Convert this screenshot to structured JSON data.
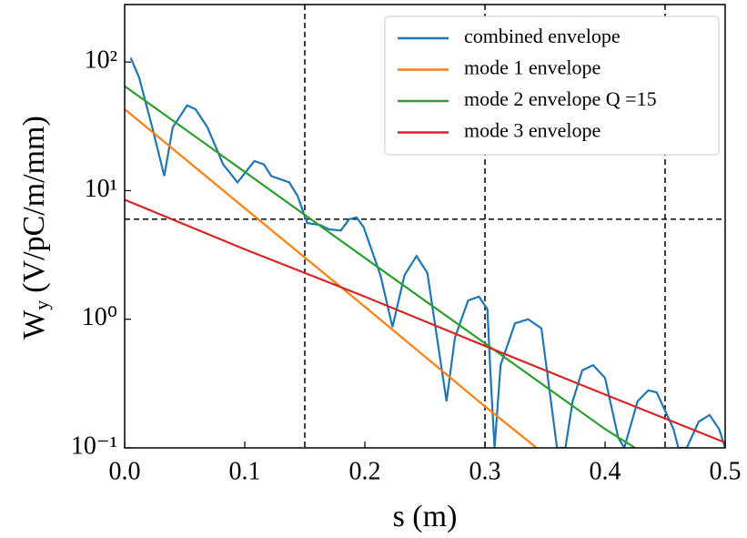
{
  "chart_data": {
    "type": "line",
    "xlabel": "s (m)",
    "ylabel": {
      "main": "W",
      "sub": "y",
      "rest": "(V/pC/m/mm)"
    },
    "log_y": true,
    "xlim": [
      0,
      0.5
    ],
    "ylim": [
      0.1,
      280
    ],
    "xticks": [
      {
        "value": 0,
        "label": "0.0"
      },
      0.1,
      0.2,
      0.3,
      0.4,
      0.5
    ],
    "yticks": [
      {
        "value": 0.1,
        "label": "10⁻¹"
      },
      {
        "value": 1,
        "label": "10⁰"
      },
      {
        "value": 10,
        "label": "10¹"
      },
      {
        "value": 100,
        "label": "10²"
      }
    ],
    "reference_lines": {
      "x": [
        0.15,
        0.3,
        0.45
      ],
      "y": [
        6
      ]
    },
    "legend": "upper right",
    "series": [
      {
        "name": "combined envelope",
        "color": "#1f77b4",
        "x": [
          0.005,
          0.012,
          0.023,
          0.033,
          0.04,
          0.052,
          0.059,
          0.069,
          0.082,
          0.094,
          0.108,
          0.116,
          0.122,
          0.137,
          0.144,
          0.152,
          0.163,
          0.17,
          0.18,
          0.187,
          0.193,
          0.199,
          0.213,
          0.223,
          0.233,
          0.243,
          0.252,
          0.268,
          0.275,
          0.286,
          0.295,
          0.302,
          0.305,
          0.308,
          0.313,
          0.325,
          0.336,
          0.347,
          0.36,
          0.367,
          0.373,
          0.381,
          0.39,
          0.4,
          0.411,
          0.416,
          0.427,
          0.436,
          0.443,
          0.457,
          0.461,
          0.468,
          0.478,
          0.487,
          0.495,
          0.5
        ],
        "values": [
          108,
          76,
          31,
          13,
          31,
          46,
          43,
          31,
          16,
          11.6,
          17,
          16,
          13,
          11.6,
          9.1,
          5.6,
          5.4,
          5.0,
          4.9,
          6.0,
          6.2,
          5.2,
          2.2,
          0.87,
          2.2,
          3.1,
          2.3,
          0.23,
          0.72,
          1.4,
          1.5,
          1.2,
          0.32,
          0.1,
          0.44,
          0.93,
          1.0,
          0.85,
          0.1,
          0.1,
          0.23,
          0.4,
          0.44,
          0.35,
          0.12,
          0.1,
          0.23,
          0.28,
          0.27,
          0.14,
          0.1,
          0.1,
          0.16,
          0.18,
          0.14,
          0.1
        ]
      },
      {
        "name": "mode 1 envelope",
        "color": "#ff7f0e",
        "x": [
          0,
          0.1,
          0.2,
          0.3,
          0.343
        ],
        "values": [
          43,
          7.3,
          1.25,
          0.21,
          0.1
        ]
      },
      {
        "name": "mode 2 envelope Q =15",
        "color": "#2ca02c",
        "x": [
          0,
          0.1,
          0.2,
          0.3,
          0.4,
          0.425
        ],
        "values": [
          65,
          14,
          3.0,
          0.65,
          0.14,
          0.1
        ]
      },
      {
        "name": "mode 3 envelope",
        "color": "#d62728",
        "x": [
          0,
          0.1,
          0.2,
          0.3,
          0.4,
          0.5
        ],
        "values": [
          8.5,
          3.5,
          1.5,
          0.62,
          0.26,
          0.11
        ]
      }
    ]
  }
}
